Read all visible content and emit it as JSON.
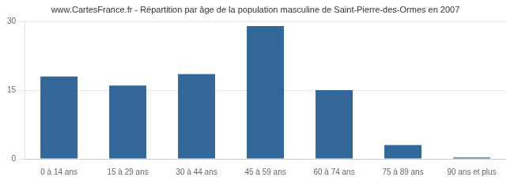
{
  "chart_data": {
    "type": "bar",
    "title": "www.CartesFrance.fr - Répartition par âge de la population masculine de Saint-Pierre-des-Ormes en 2007",
    "categories": [
      "0 à 14 ans",
      "15 à 29 ans",
      "30 à 44 ans",
      "45 à 59 ans",
      "60 à 74 ans",
      "75 à 89 ans",
      "90 ans et plus"
    ],
    "values": [
      18,
      16,
      18.5,
      29,
      15,
      3,
      0.3
    ],
    "color": "#336699",
    "ylim": [
      0,
      30
    ],
    "yticks": [
      0,
      15,
      30
    ],
    "grid": true
  }
}
